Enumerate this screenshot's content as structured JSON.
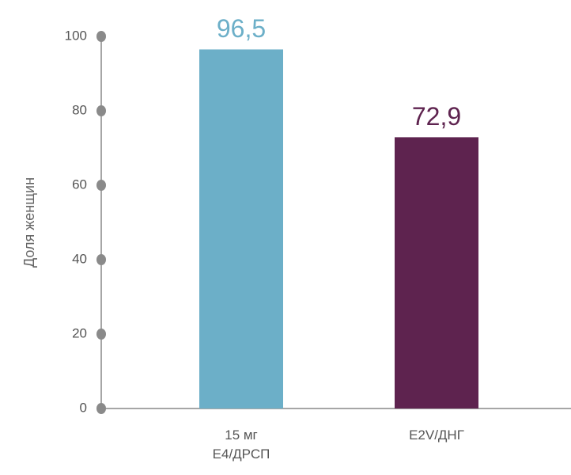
{
  "chart_data": {
    "type": "bar",
    "ylabel": "Доля женщин",
    "categories": [
      "15 мг\nЕ4/ДРСП",
      "E2V/ДНГ"
    ],
    "values": [
      96.5,
      72.9
    ],
    "value_labels": [
      "96,5",
      "72,9"
    ],
    "colors": [
      "#6cafc8",
      "#5e234f"
    ],
    "ylim": [
      0,
      100
    ],
    "yticks": [
      0,
      20,
      40,
      60,
      80,
      100
    ]
  }
}
